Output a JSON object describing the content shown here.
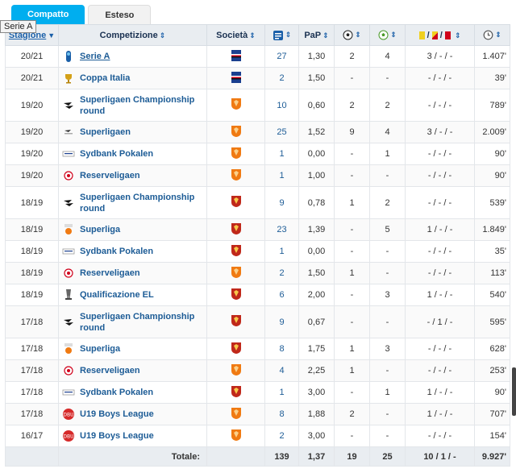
{
  "tabs": {
    "compact": "Compatto",
    "extended": "Esteso"
  },
  "tooltip": "Serie A",
  "headers": {
    "season": "Stagione",
    "competition": "Competizione",
    "club": "Società",
    "ppm": "PaP",
    "cards_sep": "/"
  },
  "rows": [
    {
      "season": "20/21",
      "competition": "Serie A",
      "club": "sampdoria",
      "apps": "27",
      "ppm": "1,30",
      "goals": "2",
      "assists": "4",
      "cards": "3 / - / -",
      "minutes": "1.407'",
      "logo": "serie-a"
    },
    {
      "season": "20/21",
      "competition": "Coppa Italia",
      "club": "sampdoria",
      "apps": "2",
      "ppm": "1,50",
      "goals": "-",
      "assists": "-",
      "cards": "- / - / -",
      "minutes": "39'",
      "logo": "coppa-italia"
    },
    {
      "season": "19/20",
      "competition": "Superligaen Championship round",
      "club": "nordsjaelland",
      "apps": "10",
      "ppm": "0,60",
      "goals": "2",
      "assists": "2",
      "cards": "- / - / -",
      "minutes": "789'",
      "logo": "superligaen"
    },
    {
      "season": "19/20",
      "competition": "Superligaen",
      "club": "nordsjaelland",
      "apps": "25",
      "ppm": "1,52",
      "goals": "9",
      "assists": "4",
      "cards": "3 / - / -",
      "minutes": "2.009'",
      "logo": "superligaen-small"
    },
    {
      "season": "19/20",
      "competition": "Sydbank Pokalen",
      "club": "nordsjaelland",
      "apps": "1",
      "ppm": "0,00",
      "goals": "-",
      "assists": "1",
      "cards": "- / - / -",
      "minutes": "90'",
      "logo": "pokalen"
    },
    {
      "season": "19/20",
      "competition": "Reserveligaen",
      "club": "nordsjaelland",
      "apps": "1",
      "ppm": "1,00",
      "goals": "-",
      "assists": "-",
      "cards": "- / - / -",
      "minutes": "90'",
      "logo": "dbu"
    },
    {
      "season": "18/19",
      "competition": "Superligaen Championship round",
      "club": "nordsjaelland-red",
      "apps": "9",
      "ppm": "0,78",
      "goals": "1",
      "assists": "2",
      "cards": "- / - / -",
      "minutes": "539'",
      "logo": "superligaen"
    },
    {
      "season": "18/19",
      "competition": "Superliga",
      "club": "nordsjaelland-red",
      "apps": "23",
      "ppm": "1,39",
      "goals": "-",
      "assists": "5",
      "cards": "1 / - / -",
      "minutes": "1.849'",
      "logo": "superliga-alka"
    },
    {
      "season": "18/19",
      "competition": "Sydbank Pokalen",
      "club": "nordsjaelland-red",
      "apps": "1",
      "ppm": "0,00",
      "goals": "-",
      "assists": "-",
      "cards": "- / - / -",
      "minutes": "35'",
      "logo": "pokalen"
    },
    {
      "season": "18/19",
      "competition": "Reserveligaen",
      "club": "nordsjaelland",
      "apps": "2",
      "ppm": "1,50",
      "goals": "1",
      "assists": "-",
      "cards": "- / - / -",
      "minutes": "113'",
      "logo": "dbu"
    },
    {
      "season": "18/19",
      "competition": "Qualificazione EL",
      "club": "nordsjaelland-red",
      "apps": "6",
      "ppm": "2,00",
      "goals": "-",
      "assists": "3",
      "cards": "1 / - / -",
      "minutes": "540'",
      "logo": "europa"
    },
    {
      "season": "17/18",
      "competition": "Superligaen Championship round",
      "club": "nordsjaelland-red",
      "apps": "9",
      "ppm": "0,67",
      "goals": "-",
      "assists": "-",
      "cards": "- / 1 / -",
      "minutes": "595'",
      "logo": "superligaen"
    },
    {
      "season": "17/18",
      "competition": "Superliga",
      "club": "nordsjaelland-red",
      "apps": "8",
      "ppm": "1,75",
      "goals": "1",
      "assists": "3",
      "cards": "- / - / -",
      "minutes": "628'",
      "logo": "superliga-alka"
    },
    {
      "season": "17/18",
      "competition": "Reserveligaen",
      "club": "nordsjaelland",
      "apps": "4",
      "ppm": "2,25",
      "goals": "1",
      "assists": "-",
      "cards": "- / - / -",
      "minutes": "253'",
      "logo": "dbu"
    },
    {
      "season": "17/18",
      "competition": "Sydbank Pokalen",
      "club": "nordsjaelland-red",
      "apps": "1",
      "ppm": "3,00",
      "goals": "-",
      "assists": "1",
      "cards": "1 / - / -",
      "minutes": "90'",
      "logo": "pokalen"
    },
    {
      "season": "17/18",
      "competition": "U19 Boys League",
      "club": "nordsjaelland",
      "apps": "8",
      "ppm": "1,88",
      "goals": "2",
      "assists": "-",
      "cards": "1 / - / -",
      "minutes": "707'",
      "logo": "u19"
    },
    {
      "season": "16/17",
      "competition": "U19 Boys League",
      "club": "nordsjaelland",
      "apps": "2",
      "ppm": "3,00",
      "goals": "-",
      "assists": "-",
      "cards": "- / - / -",
      "minutes": "154'",
      "logo": "u19"
    }
  ],
  "totals": {
    "label": "Totale:",
    "apps": "139",
    "ppm": "1,37",
    "goals": "19",
    "assists": "25",
    "cards": "10 / 1 / -",
    "minutes": "9.927'"
  },
  "colors": {
    "accent": "#00aeef",
    "link": "#1d5c96",
    "header_bg": "#e9edf1",
    "yellow": "#f0d020",
    "red": "#d0021b",
    "nordsjaelland_orange": "#f07a12",
    "nordsjaelland_red": "#c0281a",
    "sampdoria_blue": "#1a3f8f"
  }
}
